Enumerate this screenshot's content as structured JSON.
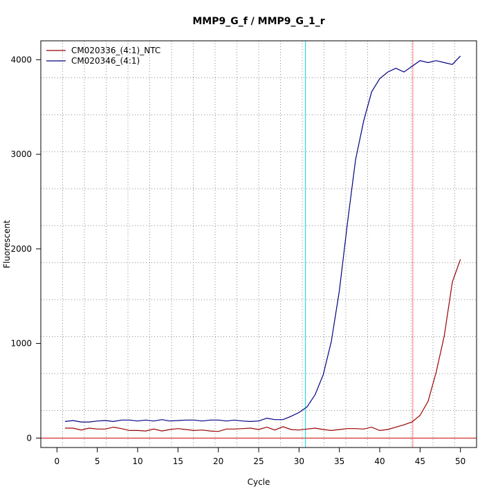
{
  "chart_data": {
    "type": "line",
    "title": "MMP9_G_f / MMP9_G_1_r",
    "xlabel": "Cycle",
    "ylabel": "Fluorescent",
    "xlim": [
      -2,
      52
    ],
    "ylim": [
      -100,
      4200
    ],
    "x_ticks": [
      0,
      5,
      10,
      15,
      20,
      25,
      30,
      35,
      40,
      45,
      50
    ],
    "y_ticks": [
      0,
      1000,
      2000,
      3000,
      4000
    ],
    "grid": true,
    "legend_position": "top-left",
    "threshold_y": 0,
    "threshold_color": "#cc0000",
    "vlines": [
      {
        "x": 30.8,
        "color": "#00d8d8"
      },
      {
        "x": 44.1,
        "color": "#ff7070"
      }
    ],
    "series": [
      {
        "name": "CM020336_(4:1)_NTC",
        "color": "#990000",
        "x": [
          1,
          2,
          3,
          4,
          5,
          6,
          7,
          8,
          9,
          10,
          11,
          12,
          13,
          14,
          15,
          16,
          17,
          18,
          19,
          20,
          21,
          22,
          23,
          24,
          25,
          26,
          27,
          28,
          29,
          30,
          31,
          32,
          33,
          34,
          35,
          36,
          37,
          38,
          39,
          40,
          41,
          42,
          43,
          44,
          45,
          46,
          47,
          48,
          49,
          50
        ],
        "y": [
          105,
          105,
          85,
          105,
          95,
          95,
          115,
          100,
          80,
          80,
          75,
          95,
          75,
          90,
          100,
          90,
          80,
          85,
          75,
          70,
          95,
          95,
          100,
          105,
          90,
          115,
          85,
          120,
          90,
          85,
          95,
          105,
          90,
          80,
          90,
          100,
          100,
          95,
          115,
          80,
          90,
          115,
          140,
          170,
          240,
          390,
          700,
          1080,
          1650,
          1890
        ]
      },
      {
        "name": "CM020346_(4:1)",
        "color": "#000080",
        "x": [
          1,
          2,
          3,
          4,
          5,
          6,
          7,
          8,
          9,
          10,
          11,
          12,
          13,
          14,
          15,
          16,
          17,
          18,
          19,
          20,
          21,
          22,
          23,
          24,
          25,
          26,
          27,
          28,
          29,
          30,
          31,
          32,
          33,
          34,
          35,
          36,
          37,
          38,
          39,
          40,
          41,
          42,
          43,
          44,
          45,
          46,
          47,
          48,
          49,
          50
        ],
        "y": [
          175,
          185,
          170,
          170,
          180,
          185,
          175,
          190,
          190,
          180,
          190,
          180,
          195,
          180,
          185,
          190,
          190,
          180,
          190,
          190,
          180,
          190,
          180,
          175,
          180,
          210,
          195,
          195,
          230,
          270,
          330,
          460,
          670,
          1020,
          1560,
          2270,
          2940,
          3350,
          3660,
          3800,
          3870,
          3910,
          3870,
          3930,
          3990,
          3970,
          3990,
          3970,
          3950,
          4040
        ]
      }
    ]
  }
}
